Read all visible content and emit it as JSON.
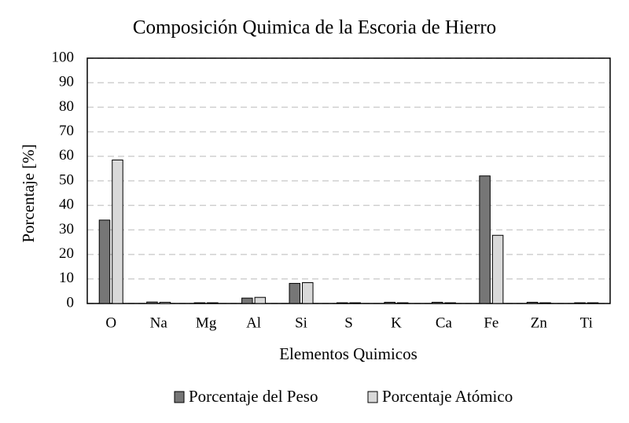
{
  "chart_data": {
    "type": "bar",
    "title": "Composición Quimica de la Escoria de Hierro",
    "x_label": "Elementos Quimicos",
    "y_label": "Porcentaje [%]",
    "categories": [
      "O",
      "Na",
      "Mg",
      "Al",
      "Si",
      "S",
      "K",
      "Ca",
      "Fe",
      "Zn",
      "Ti"
    ],
    "series": [
      {
        "name": "Porcentaje del Peso",
        "color": "#767676",
        "values": [
          34,
          0.6,
          0.3,
          2.2,
          8.2,
          0.3,
          0.5,
          0.5,
          52,
          0.5,
          0.3
        ]
      },
      {
        "name": "Porcentaje Atómico",
        "color": "#d9d9d9",
        "values": [
          58.5,
          0.5,
          0.3,
          2.5,
          8.5,
          0.3,
          0.3,
          0.3,
          27.8,
          0.3,
          0.3
        ]
      }
    ],
    "ylim": [
      0,
      100
    ],
    "yticks": [
      0,
      10,
      20,
      30,
      40,
      50,
      60,
      70,
      80,
      90,
      100
    ],
    "grid": true,
    "legend": "bottom"
  }
}
